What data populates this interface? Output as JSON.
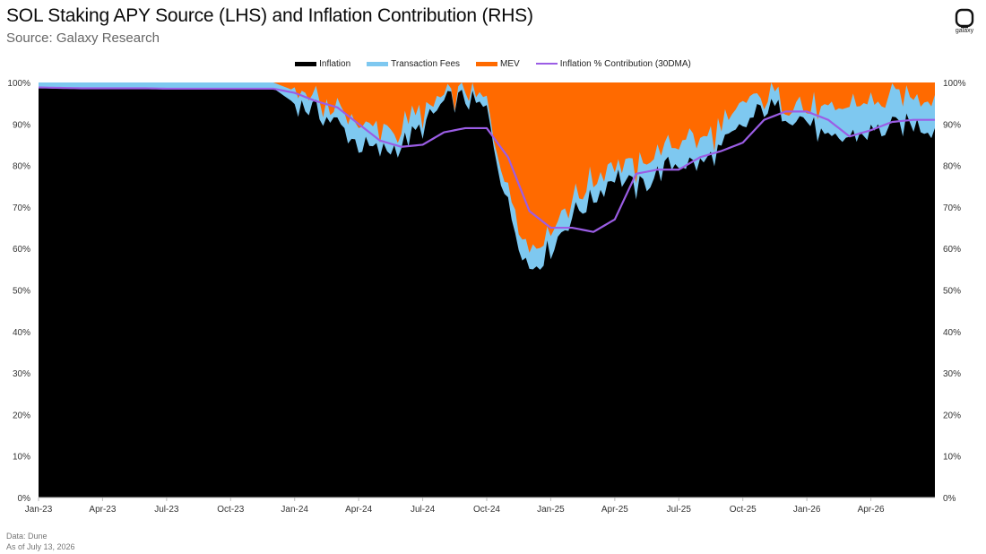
{
  "header": {
    "title": "SOL Staking APY Source (LHS) and Inflation Contribution (RHS)",
    "subtitle": "Source: Galaxy Research",
    "logo_text": "galaxy"
  },
  "footer": {
    "data_note": "Data: Dune",
    "as_of": "As of July 13, 2026"
  },
  "colors": {
    "inflation": "#000000",
    "transaction_fees": "#7ec8f0",
    "mev": "#ff6a00",
    "inflation_contribution": "#9b5de5"
  },
  "chart_data": {
    "type": "area",
    "xlabel": "",
    "ylabel": "",
    "ylim": [
      0,
      100
    ],
    "y_ticks": [
      "0%",
      "10%",
      "20%",
      "30%",
      "40%",
      "50%",
      "60%",
      "70%",
      "80%",
      "90%",
      "100%"
    ],
    "x_tick_labels": [
      "Jan-23",
      "Apr-23",
      "Jul-23",
      "Oct-23",
      "Jan-24",
      "Apr-24",
      "Jul-24",
      "Oct-24",
      "Jan-25",
      "Apr-25",
      "Jul-25",
      "Oct-25",
      "Jan-26",
      "Apr-26"
    ],
    "legend_position": "top-center",
    "grid": false,
    "x": [
      "2023-01",
      "2023-02",
      "2023-03",
      "2023-04",
      "2023-05",
      "2023-06",
      "2023-07",
      "2023-08",
      "2023-09",
      "2023-10",
      "2023-11",
      "2023-12",
      "2024-01",
      "2024-02",
      "2024-03",
      "2024-04",
      "2024-05",
      "2024-06",
      "2024-07",
      "2024-08",
      "2024-09",
      "2024-10",
      "2024-11",
      "2024-12",
      "2025-01",
      "2025-02",
      "2025-03",
      "2025-04",
      "2025-05",
      "2025-06",
      "2025-07",
      "2025-08",
      "2025-09",
      "2025-10",
      "2025-11",
      "2025-12",
      "2026-01",
      "2026-02",
      "2026-03",
      "2026-04",
      "2026-05",
      "2026-06",
      "2026-07"
    ],
    "series": [
      {
        "name": "Inflation",
        "type": "area",
        "values": [
          98.8,
          98.8,
          98.7,
          98.7,
          98.7,
          98.7,
          98.6,
          98.6,
          98.6,
          98.6,
          98.6,
          98.6,
          95,
          93,
          90,
          85,
          83,
          85,
          89,
          95,
          96,
          93,
          70,
          55,
          60,
          68,
          72,
          78,
          74,
          78,
          81,
          80,
          84,
          89,
          94,
          93,
          91,
          85,
          87,
          88,
          89,
          90,
          89
        ]
      },
      {
        "name": "Transaction Fees",
        "type": "area",
        "values": [
          1.2,
          1.2,
          1.3,
          1.3,
          1.3,
          1.3,
          1.4,
          1.4,
          1.4,
          1.4,
          1.4,
          1.4,
          3,
          3,
          3,
          5,
          5,
          4,
          3,
          2,
          2,
          2,
          5,
          5,
          5,
          4,
          4,
          3,
          5,
          5,
          5,
          6,
          5,
          5,
          3,
          3,
          3,
          7,
          7,
          7,
          7,
          7,
          8
        ]
      },
      {
        "name": "MEV",
        "type": "area",
        "values": [
          0,
          0,
          0,
          0,
          0,
          0,
          0,
          0,
          0,
          0,
          0,
          0,
          2,
          4,
          7,
          10,
          12,
          11,
          8,
          3,
          2,
          5,
          25,
          40,
          35,
          28,
          24,
          19,
          21,
          17,
          14,
          14,
          11,
          6,
          3,
          4,
          6,
          8,
          6,
          5,
          4,
          3,
          3
        ]
      },
      {
        "name": "Inflation % Contribution (30DMA)",
        "type": "line",
        "axis": "right",
        "values": [
          98.8,
          98.7,
          98.6,
          98.6,
          98.6,
          98.6,
          98.5,
          98.5,
          98.5,
          98.5,
          98.5,
          98.5,
          97.5,
          95.5,
          94,
          90,
          86,
          84.5,
          85,
          88,
          89,
          89,
          82,
          69,
          65,
          65,
          64,
          67,
          78,
          79,
          79,
          82,
          83.5,
          85.5,
          91,
          93,
          93,
          91,
          87,
          88.5,
          90.5,
          91,
          91
        ]
      }
    ]
  }
}
